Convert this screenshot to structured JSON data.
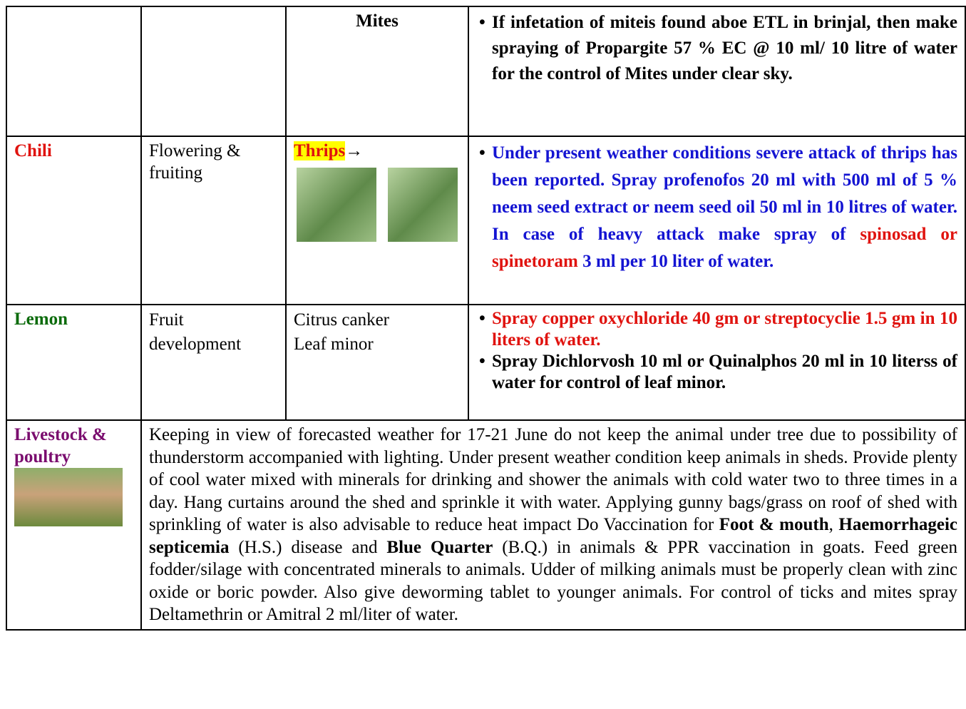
{
  "table": {
    "rows": [
      {
        "pest": "Mites",
        "advice": [
          [
            "If infetation  of miteis found aboe ETL in brinjal, then make spraying of Propargite 57 % EC @ 10 ml/ 10 litre of water for the control of Mites under clear sky."
          ]
        ]
      },
      {
        "crop": "Chili",
        "stage": "Flowering & fruiting",
        "pest": "Thrips",
        "pest_arrow": "→",
        "advice": [
          [
            "Under present weather conditions severe attack of thrips has been reported. Spray profenofos 20 ml with 500 ml of 5 % neem seed extract or neem seed oil 50  ml in 10 litres of water. In case of heavy attack make spray of ",
            "spinosad or spinetoram",
            " 3 ml per 10 liter of water."
          ]
        ]
      },
      {
        "crop": "Lemon",
        "stage": [
          "Fruit",
          "development"
        ],
        "pest": [
          "Citrus canker",
          "Leaf minor"
        ],
        "advice": [
          [
            "Spray copper oxychloride 40 gm or streptocyclie 1.5 gm in 10 liters of water."
          ],
          [
            "Spray Dichlorvosh 10 ml or Quinalphos 20 ml in 10 literss of water for control of leaf minor."
          ]
        ]
      },
      {
        "crop": "Livestock & poultry",
        "advice": [
          "Keeping in view of forecasted weather for 17-21 June do not keep the animal under tree due to possibility of thunderstorm accompanied with lighting. Under present weather condition keep animals in sheds. Provide plenty of cool water mixed with minerals for drinking and shower the animals with cold water two to three times in a day. Hang curtains around the shed and sprinkle it with water. Applying gunny bags/grass on roof of shed with sprinkling of water is also advisable to reduce heat impact Do Vaccination for ",
          "Foot & mouth",
          ", ",
          "Haemorrhageic septicemia",
          " (H.S.) disease and ",
          "Blue Quarter",
          " (B.Q.) in animals & PPR vaccination in goats. Feed green fodder/silage with concentrated minerals to animals. Udder of milking animals must be properly clean with zinc oxide or boric powder. Also give deworming tablet to younger animals. For control of ticks and mites spray Deltamethrin or Amitral 2 ml/liter of water."
        ]
      }
    ]
  }
}
